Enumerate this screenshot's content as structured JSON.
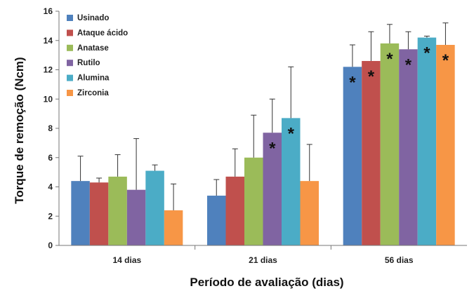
{
  "chart_data": {
    "type": "bar",
    "title": "",
    "xlabel": "Período de avaliação (dias)",
    "ylabel": "Torque de remoção (Ncm)",
    "ylim": [
      0,
      16
    ],
    "yticks": [
      "0",
      "2",
      "4",
      "6",
      "8",
      "10",
      "12",
      "14",
      "16"
    ],
    "categories": [
      "14 dias",
      "21 dias",
      "56 dias"
    ],
    "legend_position": "top-left",
    "grid": false,
    "error_bars": "upper",
    "significance_marker": "*",
    "series": [
      {
        "name": "Usinado",
        "color": "#4f81bd",
        "values": [
          4.4,
          3.4,
          12.2
        ],
        "err": [
          1.7,
          1.1,
          1.5
        ],
        "significant": [
          false,
          false,
          true
        ]
      },
      {
        "name": "Ataque ácido",
        "color": "#c0504d",
        "values": [
          4.3,
          4.7,
          12.6
        ],
        "err": [
          0.3,
          1.9,
          2.0
        ],
        "significant": [
          false,
          false,
          true
        ]
      },
      {
        "name": "Anatase",
        "color": "#9bbb59",
        "values": [
          4.7,
          6.0,
          13.8
        ],
        "err": [
          1.5,
          2.9,
          1.3
        ],
        "significant": [
          false,
          false,
          true
        ]
      },
      {
        "name": "Rutilo",
        "color": "#8064a2",
        "values": [
          3.8,
          7.7,
          13.4
        ],
        "err": [
          3.5,
          2.3,
          1.2
        ],
        "significant": [
          false,
          true,
          true
        ]
      },
      {
        "name": "Alumina",
        "color": "#4bacc6",
        "values": [
          5.1,
          8.7,
          14.2
        ],
        "err": [
          0.4,
          3.5,
          0.1
        ],
        "significant": [
          false,
          true,
          true
        ]
      },
      {
        "name": "Zirconia",
        "color": "#f79646",
        "values": [
          2.4,
          4.4,
          13.7
        ],
        "err": [
          1.8,
          2.5,
          1.5
        ],
        "significant": [
          false,
          false,
          true
        ]
      }
    ]
  }
}
